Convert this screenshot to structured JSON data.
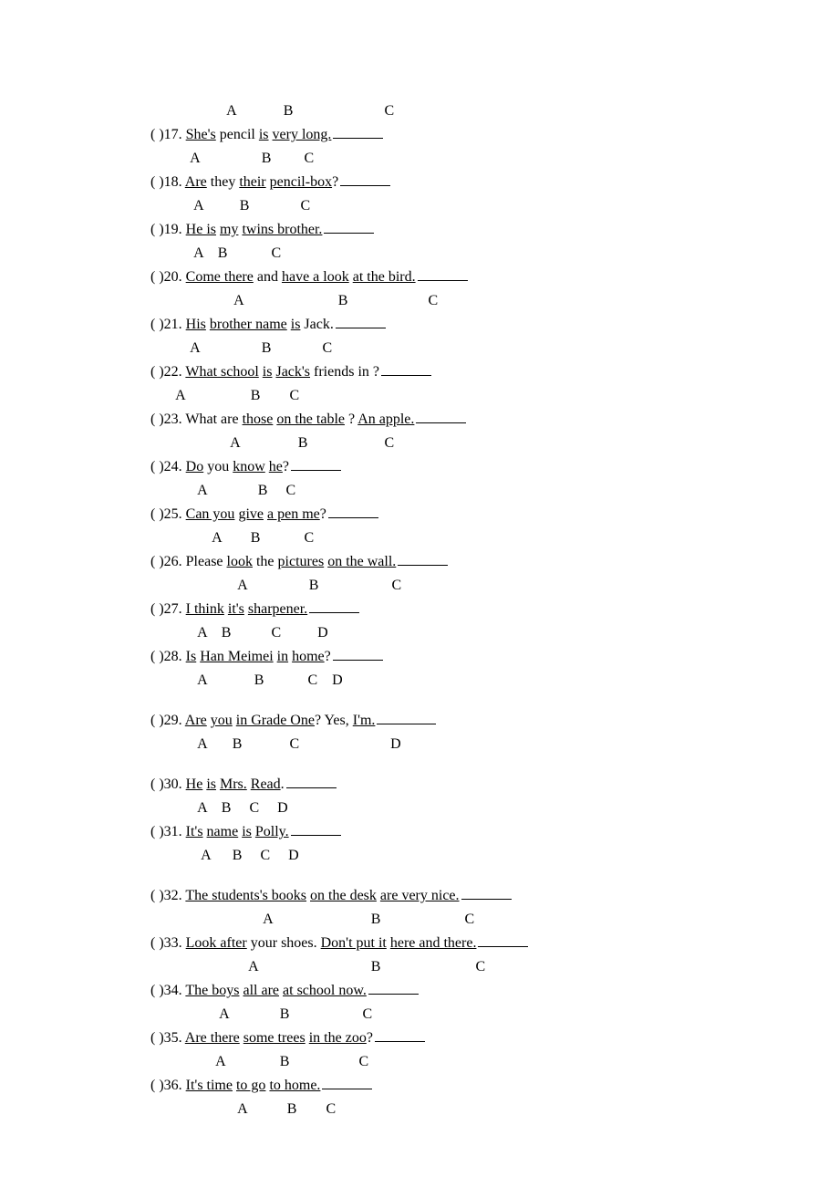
{
  "labels_prefix_row": "                     A             B                         C",
  "questions": [
    {
      "num": "17",
      "parts": [
        {
          "t": "She's",
          "u": true
        },
        {
          "t": " pencil ",
          "u": false
        },
        {
          "t": "is",
          "u": true
        },
        {
          "t": " ",
          "u": false
        },
        {
          "t": "very long.",
          "u": true
        }
      ],
      "labels": "           A                 B         C"
    },
    {
      "num": "18",
      "parts": [
        {
          "t": "Are",
          "u": true
        },
        {
          "t": " they ",
          "u": false
        },
        {
          "t": "their",
          "u": true
        },
        {
          "t": " ",
          "u": false
        },
        {
          "t": "pencil-box",
          "u": true
        },
        {
          "t": "?",
          "u": false
        }
      ],
      "labels": "            A          B              C"
    },
    {
      "num": "19",
      "parts": [
        {
          "t": "He is",
          "u": true
        },
        {
          "t": " ",
          "u": false
        },
        {
          "t": "my",
          "u": true
        },
        {
          "t": " ",
          "u": false
        },
        {
          "t": "twins brother.",
          "u": true
        }
      ],
      "labels": "            A    B            C"
    },
    {
      "num": "20",
      "parts": [
        {
          "t": "Come there",
          "u": true
        },
        {
          "t": " and ",
          "u": false
        },
        {
          "t": "have a look",
          "u": true
        },
        {
          "t": " ",
          "u": false
        },
        {
          "t": "at the bird.",
          "u": true
        }
      ],
      "labels": "                       A                          B                      C"
    },
    {
      "num": "21",
      "parts": [
        {
          "t": "His",
          "u": true
        },
        {
          "t": " ",
          "u": false
        },
        {
          "t": "brother name",
          "u": true
        },
        {
          "t": " ",
          "u": false
        },
        {
          "t": "is",
          "u": true
        },
        {
          "t": " Jack.",
          "u": false
        }
      ],
      "labels": "           A                 B              C"
    },
    {
      "num": "22",
      "parts": [
        {
          "t": "What school",
          "u": true
        },
        {
          "t": " ",
          "u": false
        },
        {
          "t": "is",
          "u": true
        },
        {
          "t": " ",
          "u": false
        },
        {
          "t": "Jack's",
          "u": true
        },
        {
          "t": " friends in ?",
          "u": false
        }
      ],
      "labels": "       A                  B        C"
    },
    {
      "num": "23",
      "parts": [
        {
          "t": "What are ",
          "u": false
        },
        {
          "t": "those",
          "u": true
        },
        {
          "t": " ",
          "u": false
        },
        {
          "t": "on the table",
          "u": true
        },
        {
          "t": " ?      ",
          "u": false
        },
        {
          "t": "An apple.",
          "u": true
        }
      ],
      "labels": "                      A                B                     C"
    },
    {
      "num": "24",
      "parts": [
        {
          "t": "Do",
          "u": true
        },
        {
          "t": " you ",
          "u": false
        },
        {
          "t": "know",
          "u": true
        },
        {
          "t": " ",
          "u": false
        },
        {
          "t": "he",
          "u": true
        },
        {
          "t": "?",
          "u": false
        }
      ],
      "labels": "             A              B     C"
    },
    {
      "num": "25",
      "parts": [
        {
          "t": "Can you",
          "u": true
        },
        {
          "t": " ",
          "u": false
        },
        {
          "t": "give",
          "u": true
        },
        {
          "t": " ",
          "u": false
        },
        {
          "t": "a pen me",
          "u": true
        },
        {
          "t": "?",
          "u": false
        }
      ],
      "labels": "                 A        B            C"
    },
    {
      "num": "26",
      "parts": [
        {
          "t": "Please ",
          "u": false
        },
        {
          "t": "look",
          "u": true
        },
        {
          "t": " the ",
          "u": false
        },
        {
          "t": "pictures",
          "u": true
        },
        {
          "t": " ",
          "u": false
        },
        {
          "t": "on the wall.",
          "u": true
        }
      ],
      "labels": "                        A                 B                    C"
    },
    {
      "num": "27",
      "parts": [
        {
          "t": "I think",
          "u": true
        },
        {
          "t": " ",
          "u": false
        },
        {
          "t": "it's",
          "u": true
        },
        {
          "t": " ",
          "u": false
        },
        {
          "t": "sharpener.",
          "u": true
        }
      ],
      "labels": "             A    B           C          D"
    },
    {
      "num": "28",
      "parts": [
        {
          "t": "Is",
          "u": true
        },
        {
          "t": " ",
          "u": false
        },
        {
          "t": "Han Meimei",
          "u": true
        },
        {
          "t": " ",
          "u": false
        },
        {
          "t": "in",
          "u": true
        },
        {
          "t": " ",
          "u": false
        },
        {
          "t": "home",
          "u": true
        },
        {
          "t": "?",
          "u": false
        }
      ],
      "labels": "             A             B            C    D",
      "spacer_after": true
    },
    {
      "num": "29",
      "parts": [
        {
          "t": "Are",
          "u": true
        },
        {
          "t": " ",
          "u": false
        },
        {
          "t": "you",
          "u": true
        },
        {
          "t": " ",
          "u": false
        },
        {
          "t": "in Grade One",
          "u": true
        },
        {
          "t": "? Yes, ",
          "u": false
        },
        {
          "t": "I'm.",
          "u": true
        }
      ],
      "labels": "             A       B             C                         D",
      "blank_long": true,
      "spacer_after": true
    },
    {
      "num": "30",
      "parts": [
        {
          "t": "He",
          "u": true
        },
        {
          "t": " ",
          "u": false
        },
        {
          "t": "is",
          "u": true
        },
        {
          "t": " ",
          "u": false
        },
        {
          "t": "Mrs.",
          "u": true
        },
        {
          "t": " ",
          "u": false
        },
        {
          "t": "Read",
          "u": true
        },
        {
          "t": ".",
          "u": false
        }
      ],
      "labels": "             A    B     C     D"
    },
    {
      "num": "31",
      "parts": [
        {
          "t": "It's",
          "u": true
        },
        {
          "t": " ",
          "u": false
        },
        {
          "t": "name",
          "u": true
        },
        {
          "t": " ",
          "u": false
        },
        {
          "t": "is",
          "u": true
        },
        {
          "t": " ",
          "u": false
        },
        {
          "t": "Polly.",
          "u": true
        }
      ],
      "labels": "              A      B     C     D",
      "spacer_after": true
    },
    {
      "num": "32",
      "parts": [
        {
          "t": "The students's books",
          "u": true
        },
        {
          "t": " ",
          "u": false
        },
        {
          "t": "on the desk",
          "u": true
        },
        {
          "t": " ",
          "u": false
        },
        {
          "t": "are very nice.",
          "u": true
        }
      ],
      "labels": "                               A                           B                       C"
    },
    {
      "num": "33",
      "parts": [
        {
          "t": "Look after",
          "u": true
        },
        {
          "t": " your shoes. ",
          "u": false
        },
        {
          "t": "Don't put it",
          "u": true
        },
        {
          "t": " ",
          "u": false
        },
        {
          "t": "here and there.",
          "u": true
        }
      ],
      "labels": "                           A                               B                          C"
    },
    {
      "num": "34",
      "parts": [
        {
          "t": "The boys",
          "u": true
        },
        {
          "t": " ",
          "u": false
        },
        {
          "t": "all are",
          "u": true
        },
        {
          "t": " ",
          "u": false
        },
        {
          "t": "at school now.",
          "u": true
        }
      ],
      "labels": "                   A              B                    C"
    },
    {
      "num": "35",
      "parts": [
        {
          "t": "Are there",
          "u": true
        },
        {
          "t": " ",
          "u": false
        },
        {
          "t": "some trees",
          "u": true
        },
        {
          "t": " ",
          "u": false
        },
        {
          "t": "in the zoo",
          "u": true
        },
        {
          "t": "?",
          "u": false
        }
      ],
      "labels": "                  A               B                   C"
    },
    {
      "num": "36",
      "parts": [
        {
          "t": "It's time",
          "u": true
        },
        {
          "t": " ",
          "u": false
        },
        {
          "t": "to go",
          "u": true
        },
        {
          "t": " ",
          "u": false
        },
        {
          "t": "to home.",
          "u": true
        }
      ],
      "labels": "                        A           B        C"
    }
  ]
}
